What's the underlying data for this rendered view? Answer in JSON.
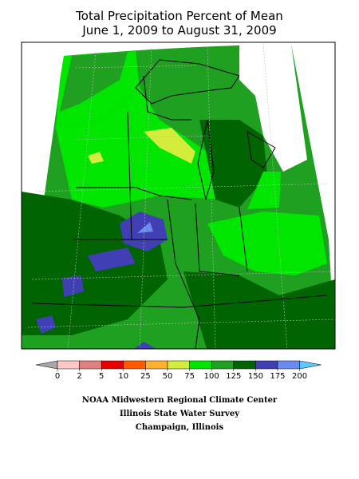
{
  "title": {
    "line1": "Total Precipitation Percent of Mean",
    "line2": "June 1, 2009 to August 31, 2009"
  },
  "legend": {
    "ticks": [
      0,
      2,
      5,
      10,
      25,
      50,
      75,
      100,
      125,
      150,
      175,
      200
    ],
    "colors": [
      "#ffc8c8",
      "#e08080",
      "#e80000",
      "#ff5a00",
      "#ffb030",
      "#d4ec3c",
      "#00e600",
      "#20a020",
      "#006400",
      "#4040b4",
      "#6a8cf0"
    ],
    "under_color": "#a8a8a8",
    "over_color": "#60c8ff"
  },
  "footer": {
    "line1": "NOAA Midwestern Regional Climate Center",
    "line2": "Illinois State Water Survey",
    "line3": "Champaign, Illinois"
  }
}
